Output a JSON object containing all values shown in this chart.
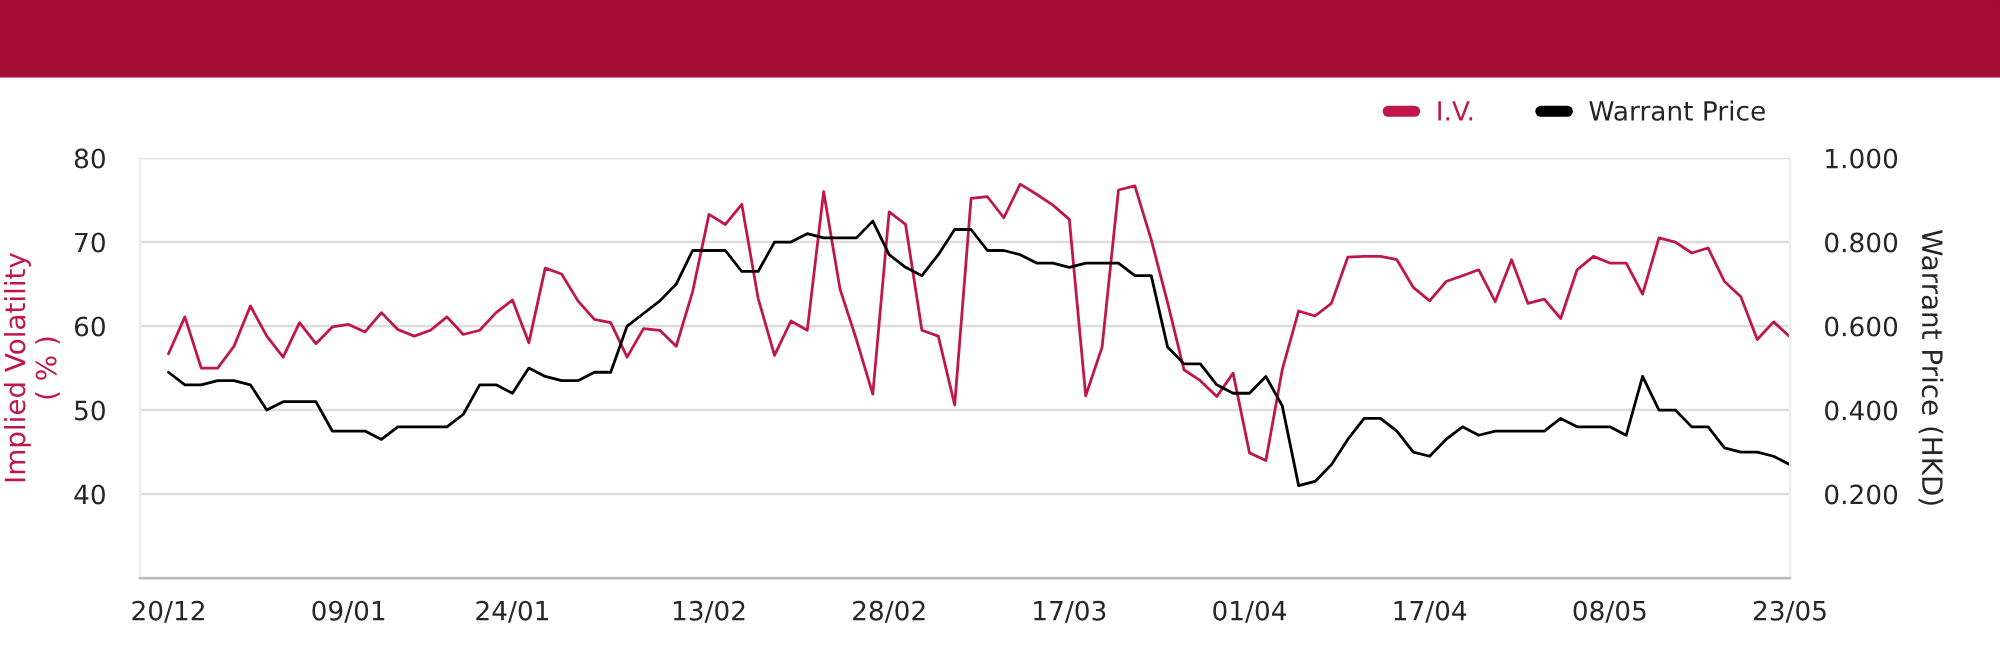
{
  "chart_data": {
    "type": "line",
    "ylabel": "Implied Volatility\n( % )",
    "y2label": "Warrant Price (HKD)",
    "categories": [
      "20/12",
      null,
      null,
      null,
      null,
      null,
      null,
      null,
      null,
      null,
      null,
      "09/01",
      null,
      null,
      null,
      null,
      null,
      null,
      null,
      null,
      null,
      "24/01",
      null,
      null,
      null,
      null,
      null,
      null,
      null,
      null,
      null,
      null,
      null,
      "13/02",
      null,
      null,
      null,
      null,
      null,
      null,
      null,
      null,
      null,
      null,
      "28/02",
      null,
      null,
      null,
      null,
      null,
      null,
      null,
      null,
      null,
      null,
      "17/03",
      null,
      null,
      null,
      null,
      null,
      null,
      null,
      null,
      null,
      null,
      "01/04",
      null,
      null,
      null,
      null,
      null,
      null,
      null,
      null,
      null,
      null,
      "17/04",
      null,
      null,
      null,
      null,
      null,
      null,
      null,
      null,
      null,
      null,
      "08/05",
      null,
      null,
      null,
      null,
      null,
      null,
      null,
      null,
      null,
      null,
      "23/05"
    ],
    "series": [
      {
        "name": "I.V.",
        "color": "#c0174a",
        "values": [
          56.7,
          61.1,
          55.0,
          55.0,
          57.6,
          62.4,
          58.8,
          56.3,
          60.4,
          57.9,
          59.9,
          60.2,
          59.3,
          61.6,
          59.6,
          58.8,
          59.5,
          61.1,
          59.0,
          59.5,
          61.6,
          63.1,
          58.0,
          66.9,
          66.2,
          63.0,
          60.8,
          60.4,
          56.3,
          59.7,
          59.5,
          57.6,
          64.1,
          73.3,
          72.1,
          74.5,
          63.3,
          56.5,
          60.6,
          59.5,
          76.0,
          64.4,
          58.4,
          51.9,
          73.6,
          72.1,
          59.5,
          58.8,
          50.6,
          75.2,
          75.4,
          72.9,
          76.9,
          75.7,
          74.4,
          72.7,
          51.7,
          57.5,
          76.2,
          76.7,
          70.3,
          62.8,
          54.8,
          53.5,
          51.6,
          54.4,
          44.9,
          44.0,
          54.8,
          61.8,
          61.2,
          62.7,
          68.2,
          68.3,
          68.3,
          67.9,
          64.6,
          63.0,
          65.3,
          66.0,
          66.7,
          62.9,
          67.9,
          62.7,
          63.2,
          60.9,
          66.7,
          68.3,
          67.5,
          67.5,
          63.8,
          70.5,
          70.0,
          68.7,
          69.3,
          65.3,
          63.5,
          58.4,
          60.5,
          58.7
        ]
      },
      {
        "name": "Warrant Price",
        "color": "#000000",
        "axis": "y2",
        "values": [
          0.49,
          0.46,
          0.46,
          0.47,
          0.47,
          0.46,
          0.4,
          0.42,
          0.42,
          0.42,
          0.35,
          0.35,
          0.35,
          0.33,
          0.36,
          0.36,
          0.36,
          0.36,
          0.39,
          0.46,
          0.46,
          0.44,
          0.5,
          0.48,
          0.47,
          0.47,
          0.49,
          0.49,
          0.6,
          0.63,
          0.66,
          0.7,
          0.78,
          0.78,
          0.78,
          0.73,
          0.73,
          0.8,
          0.8,
          0.82,
          0.81,
          0.81,
          0.81,
          0.85,
          0.77,
          0.74,
          0.72,
          0.77,
          0.83,
          0.83,
          0.78,
          0.78,
          0.77,
          0.75,
          0.75,
          0.74,
          0.75,
          0.75,
          0.75,
          0.72,
          0.72,
          0.55,
          0.51,
          0.51,
          0.46,
          0.44,
          0.44,
          0.48,
          0.41,
          0.22,
          0.23,
          0.27,
          0.33,
          0.38,
          0.38,
          0.35,
          0.3,
          0.29,
          0.33,
          0.36,
          0.34,
          0.35,
          0.35,
          0.35,
          0.35,
          0.38,
          0.36,
          0.36,
          0.36,
          0.34,
          0.48,
          0.4,
          0.4,
          0.36,
          0.36,
          0.31,
          0.3,
          0.3,
          0.29,
          0.27
        ]
      }
    ],
    "ylim": [
      30,
      80
    ],
    "yticks": [
      {
        "value": 30,
        "label": null
      },
      40,
      50,
      60,
      70,
      80
    ],
    "y2lim": [
      0,
      1
    ],
    "y2ticks": [
      {
        "value": 0,
        "label": null
      },
      {
        "value": 0.2,
        "label": "0.200"
      },
      {
        "value": 0.4,
        "label": "0.400"
      },
      {
        "value": 0.6,
        "label": "0.600"
      },
      {
        "value": 0.8,
        "label": "0.800"
      },
      {
        "value": 1,
        "label": "1.000"
      }
    ],
    "grid": "y",
    "legend": "top right",
    "marker": "none",
    "line_style": "solid"
  }
}
